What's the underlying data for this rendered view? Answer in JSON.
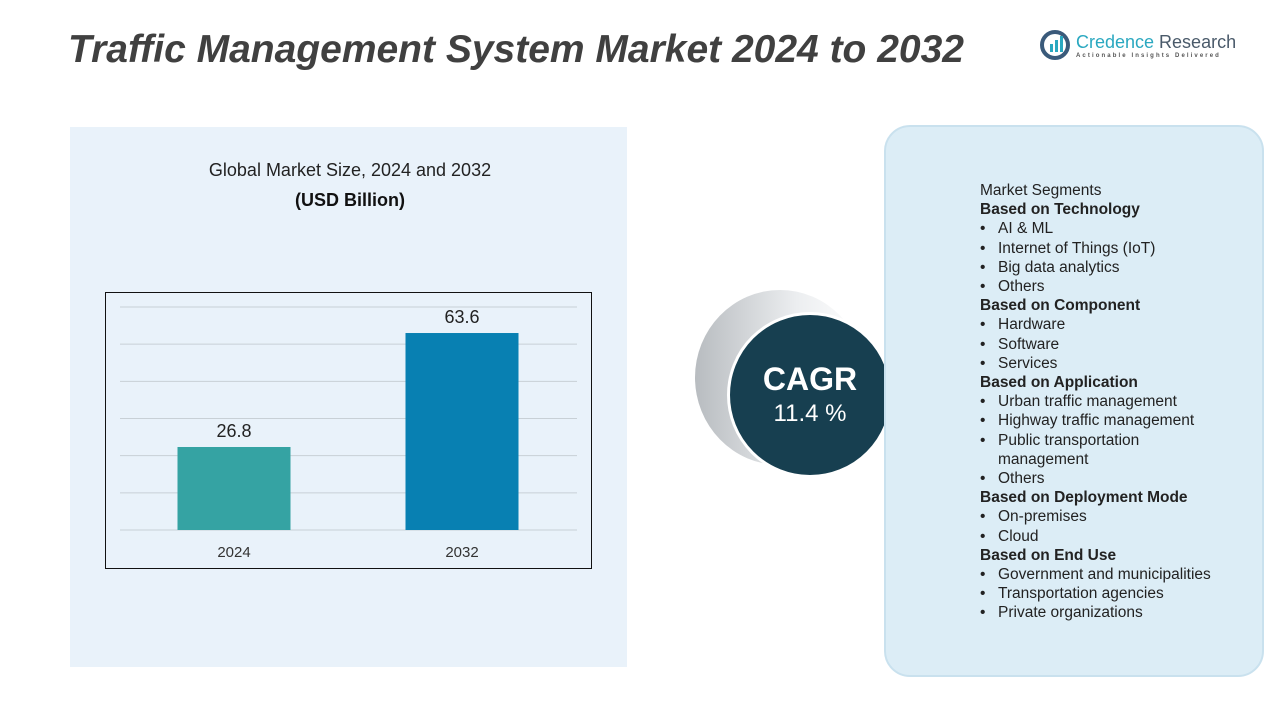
{
  "title": "Traffic Management System Market 2024 to 2032",
  "logo": {
    "name1": "Credence",
    "name2": " Research",
    "tagline": "Actionable Insights Delivered"
  },
  "chart_data": {
    "type": "bar",
    "title": "Global Market Size, 2024 and 2032",
    "subtitle": "(USD Billion)",
    "categories": [
      "2024",
      "2032"
    ],
    "values": [
      26.8,
      63.6
    ],
    "value_labels": [
      "26.8",
      "63.6"
    ],
    "colors": [
      "#35a3a3",
      "#0880b2"
    ],
    "ylim": [
      0,
      72
    ],
    "grid": true
  },
  "cagr": {
    "label": "CAGR",
    "value": "11.4 %"
  },
  "segments": {
    "heading": "Market Segments",
    "groups": [
      {
        "title": "Based on Technology",
        "items": [
          "AI & ML",
          "Internet of Things (IoT)",
          "Big data analytics",
          "Others"
        ]
      },
      {
        "title": "Based on Component",
        "items": [
          "Hardware",
          "Software",
          "Services"
        ]
      },
      {
        "title": "Based on Application",
        "items": [
          "Urban traffic management",
          "Highway traffic management",
          "Public transportation management",
          "Others"
        ]
      },
      {
        "title": "Based on Deployment Mode",
        "items": [
          "On-premises",
          "Cloud"
        ]
      },
      {
        "title": "Based on End Use",
        "items": [
          "Government and municipalities",
          "Transportation agencies",
          "Private organizations"
        ]
      }
    ]
  }
}
